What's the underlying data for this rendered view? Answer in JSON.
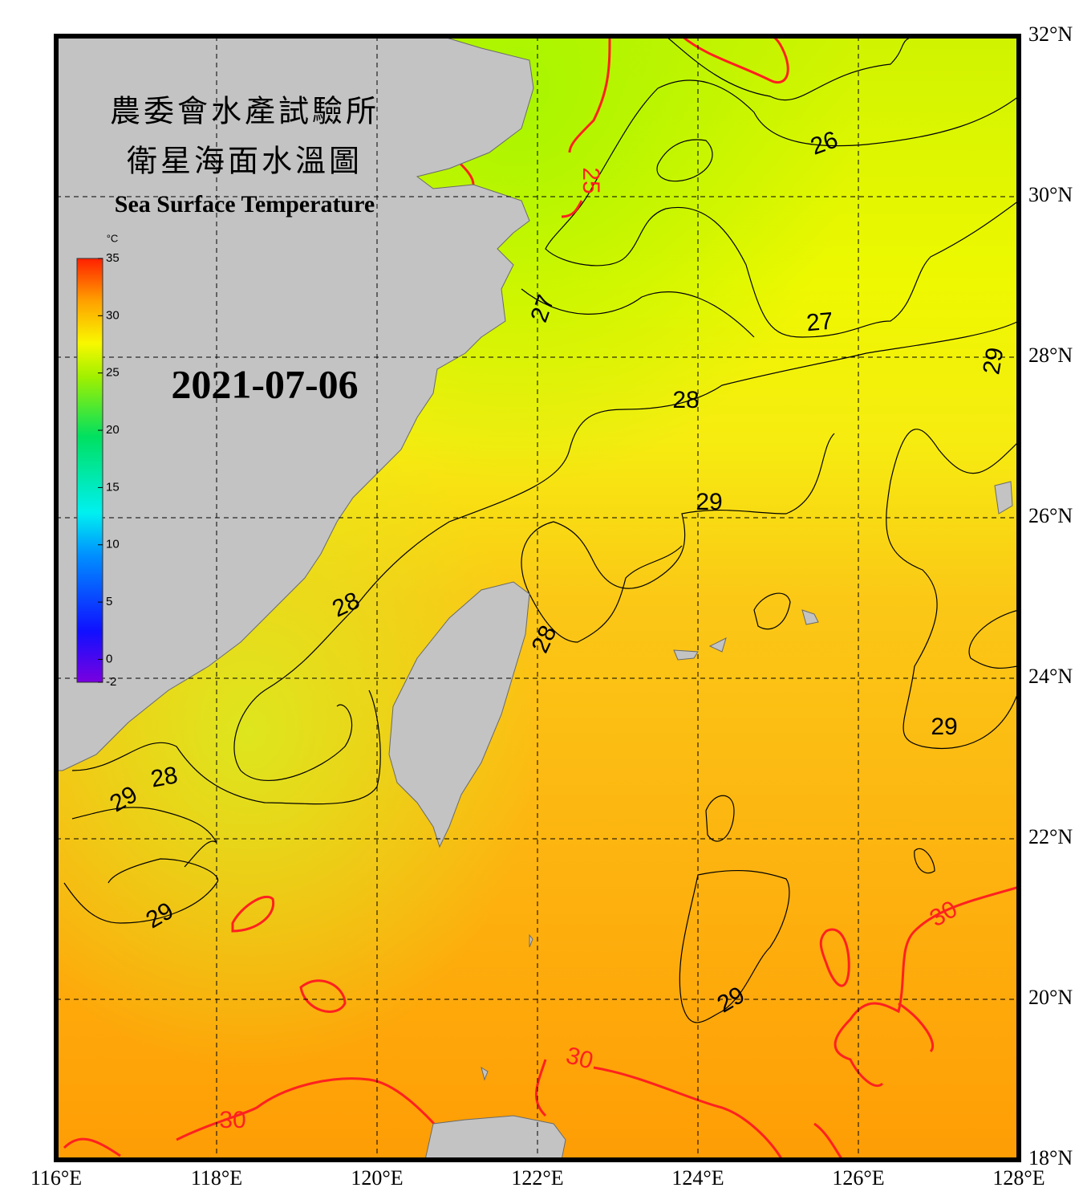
{
  "title": [
    "農委會水產試驗所",
    "衛星海面水溫圖"
  ],
  "subtitle": "Sea Surface Temperature",
  "date": "2021-07-06",
  "map": {
    "xlim": [
      116,
      128
    ],
    "ylim": [
      18,
      32
    ],
    "xticks": [
      {
        "value": 116,
        "label": "116°E"
      },
      {
        "value": 118,
        "label": "118°E"
      },
      {
        "value": 120,
        "label": "120°E"
      },
      {
        "value": 122,
        "label": "122°E"
      },
      {
        "value": 124,
        "label": "124°E"
      },
      {
        "value": 126,
        "label": "126°E"
      },
      {
        "value": 128,
        "label": "128°E"
      }
    ],
    "yticks": [
      {
        "value": 18,
        "label": "18°N"
      },
      {
        "value": 20,
        "label": "20°N"
      },
      {
        "value": 22,
        "label": "22°N"
      },
      {
        "value": 24,
        "label": "24°N"
      },
      {
        "value": 26,
        "label": "26°N"
      },
      {
        "value": 28,
        "label": "28°N"
      },
      {
        "value": 30,
        "label": "30°N"
      },
      {
        "value": 32,
        "label": "32°N"
      }
    ]
  },
  "colorbar": {
    "unit": "°C",
    "range": [
      -2,
      35
    ],
    "ticks": [
      -2,
      0,
      5,
      10,
      15,
      20,
      25,
      30,
      35
    ]
  },
  "contour_labels": {
    "values": [
      26,
      25,
      27,
      27,
      29,
      28,
      29,
      28,
      28,
      29,
      28,
      29,
      29,
      29,
      30,
      30,
      30
    ],
    "colors": [
      "#000000",
      "#ff2020",
      "#000000",
      "#000000",
      "#000000",
      "#000000",
      "#000000",
      "#000000",
      "#000000",
      "#000000",
      "#000000",
      "#000000",
      "#000000",
      "#000000",
      "#ff2020",
      "#ff2020",
      "#ff2020"
    ]
  }
}
